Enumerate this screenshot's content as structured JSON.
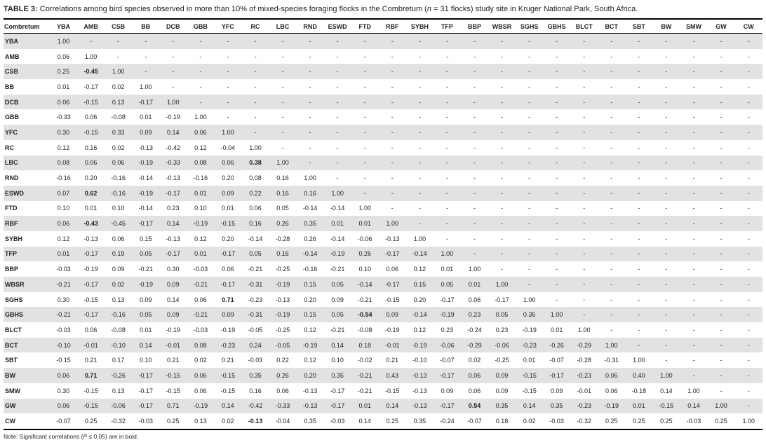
{
  "page": {
    "background": "#ffffff",
    "text_color": "#1f1f1f",
    "shaded_row_color": "#e2e2e2",
    "border_color": "#000000"
  },
  "title": {
    "prefix": "TABLE 3:",
    "before_n": " Correlations among bird species observed in more than 10% of mixed-species foraging flocks in the Combretum (",
    "n": "n",
    "after_n": " = 31 flocks) study site in Kruger National Park, South Africa."
  },
  "note": {
    "before_p": "Note: Significant correlations (",
    "p": "P",
    "after_p": " ≤ 0.05) are in bold."
  },
  "table": {
    "corner_label": "Combretum",
    "columns": [
      "YBA",
      "AMB",
      "CSB",
      "BB",
      "DCB",
      "GBB",
      "YFC",
      "RC",
      "LBC",
      "RND",
      "ESWD",
      "FTD",
      "RBF",
      "SYBH",
      "TFP",
      "BBP",
      "WBSR",
      "SGHS",
      "GBHS",
      "BLCT",
      "BCT",
      "SBT",
      "BW",
      "SMW",
      "GW",
      "CW"
    ],
    "rows": [
      {
        "species": "YBA",
        "bold": [],
        "values": [
          "1.00",
          "-",
          "-",
          "-",
          "-",
          "-",
          "-",
          "-",
          "-",
          "-",
          "-",
          "-",
          "-",
          "-",
          "-",
          "-",
          "-",
          "-",
          "-",
          "-",
          "-",
          "-",
          "-",
          "-",
          "-",
          "-"
        ]
      },
      {
        "species": "AMB",
        "bold": [],
        "values": [
          "0.06",
          "1.00",
          "-",
          "-",
          "-",
          "-",
          "-",
          "-",
          "-",
          "-",
          "-",
          "-",
          "-",
          "-",
          "-",
          "-",
          "-",
          "-",
          "-",
          "-",
          "-",
          "-",
          "-",
          "-",
          "-",
          "-"
        ]
      },
      {
        "species": "CSB",
        "bold": [
          1
        ],
        "values": [
          "0.25",
          "-0.45",
          "1.00",
          "-",
          "-",
          "-",
          "-",
          "-",
          "-",
          "-",
          "-",
          "-",
          "-",
          "-",
          "-",
          "-",
          "-",
          "-",
          "-",
          "-",
          "-",
          "-",
          "-",
          "-",
          "-",
          "-"
        ]
      },
      {
        "species": "BB",
        "bold": [],
        "values": [
          "0.01",
          "-0.17",
          "0.02",
          "1.00",
          "-",
          "-",
          "-",
          "-",
          "-",
          "-",
          "-",
          "-",
          "-",
          "-",
          "-",
          "-",
          "-",
          "-",
          "-",
          "-",
          "-",
          "-",
          "-",
          "-",
          "-",
          "-"
        ]
      },
      {
        "species": "DCB",
        "bold": [],
        "values": [
          "0.06",
          "-0.15",
          "0.13",
          "-0.17",
          "1.00",
          "-",
          "-",
          "-",
          "-",
          "-",
          "-",
          "-",
          "-",
          "-",
          "-",
          "-",
          "-",
          "-",
          "-",
          "-",
          "-",
          "-",
          "-",
          "-",
          "-",
          "-"
        ]
      },
      {
        "species": "GBB",
        "bold": [],
        "values": [
          "-0.33",
          "0.06",
          "-0.08",
          "0.01",
          "-0.19",
          "1.00",
          "-",
          "-",
          "-",
          "-",
          "-",
          "-",
          "-",
          "-",
          "-",
          "-",
          "-",
          "-",
          "-",
          "-",
          "-",
          "-",
          "-",
          "-",
          "-",
          "-"
        ]
      },
      {
        "species": "YFC",
        "bold": [],
        "values": [
          "0.30",
          "-0.15",
          "0.33",
          "0.09",
          "0.14",
          "0.06",
          "1.00",
          "-",
          "-",
          "-",
          "-",
          "-",
          "-",
          "-",
          "-",
          "-",
          "-",
          "-",
          "-",
          "-",
          "-",
          "-",
          "-",
          "-",
          "-",
          "-"
        ]
      },
      {
        "species": "RC",
        "bold": [],
        "values": [
          "0.12",
          "0.16",
          "0.02",
          "-0.13",
          "-0.42",
          "0.12",
          "-0.04",
          "1.00",
          "-",
          "-",
          "-",
          "-",
          "-",
          "-",
          "-",
          "-",
          "-",
          "-",
          "-",
          "-",
          "-",
          "-",
          "-",
          "-",
          "-",
          "-"
        ]
      },
      {
        "species": "LBC",
        "bold": [
          7
        ],
        "values": [
          "0.08",
          "0.06",
          "0.06",
          "-0.19",
          "-0.33",
          "0.08",
          "0.06",
          "0.38",
          "1.00",
          "-",
          "-",
          "-",
          "-",
          "-",
          "-",
          "-",
          "-",
          "-",
          "-",
          "-",
          "-",
          "-",
          "-",
          "-",
          "-",
          "-"
        ]
      },
      {
        "species": "RND",
        "bold": [],
        "values": [
          "-0.16",
          "0.20",
          "-0.16",
          "-0.14",
          "-0.13",
          "-0.16",
          "0.20",
          "0.08",
          "0.16",
          "1.00",
          "-",
          "-",
          "-",
          "-",
          "-",
          "-",
          "-",
          "-",
          "-",
          "-",
          "-",
          "-",
          "-",
          "-",
          "-",
          "-"
        ]
      },
      {
        "species": "ESWD",
        "bold": [
          1
        ],
        "values": [
          "0.07",
          "0.62",
          "-0.16",
          "-0.19",
          "-0.17",
          "0.01",
          "0.09",
          "0.22",
          "0.16",
          "0.16",
          "1.00",
          "-",
          "-",
          "-",
          "-",
          "-",
          "-",
          "-",
          "-",
          "-",
          "-",
          "-",
          "-",
          "-",
          "-",
          "-"
        ]
      },
      {
        "species": "FTD",
        "bold": [],
        "values": [
          "0.10",
          "0.01",
          "0.10",
          "-0.14",
          "0.23",
          "0.10",
          "0.01",
          "0.06",
          "0.05",
          "-0.14",
          "-0.14",
          "1.00",
          "-",
          "-",
          "-",
          "-",
          "-",
          "-",
          "-",
          "-",
          "-",
          "-",
          "-",
          "-",
          "-",
          "-"
        ]
      },
      {
        "species": "RBF",
        "bold": [
          1
        ],
        "values": [
          "0.06",
          "-0.43",
          "-0.45",
          "-0.17",
          "0.14",
          "-0.19",
          "-0.15",
          "0.16",
          "0.26",
          "0.35",
          "0.01",
          "0.01",
          "1.00",
          "-",
          "-",
          "-",
          "-",
          "-",
          "-",
          "-",
          "-",
          "-",
          "-",
          "-",
          "-",
          "-"
        ]
      },
      {
        "species": "SYBH",
        "bold": [],
        "values": [
          "0.12",
          "-0.13",
          "0.06",
          "0.15",
          "-0.13",
          "0.12",
          "0.20",
          "-0.14",
          "-0.28",
          "0.26",
          "-0.14",
          "-0.06",
          "-0.13",
          "1.00",
          "-",
          "-",
          "-",
          "-",
          "-",
          "-",
          "-",
          "-",
          "-",
          "-",
          "-",
          "-"
        ]
      },
      {
        "species": "TFP",
        "bold": [],
        "values": [
          "0.01",
          "-0.17",
          "0.19",
          "0.05",
          "-0.17",
          "0.01",
          "-0.17",
          "0.05",
          "0.16",
          "-0.14",
          "-0.19",
          "0.26",
          "-0.17",
          "-0.14",
          "1.00",
          "-",
          "-",
          "-",
          "-",
          "-",
          "-",
          "-",
          "-",
          "-",
          "-",
          "-"
        ]
      },
      {
        "species": "BBP",
        "bold": [],
        "values": [
          "-0.03",
          "-0.19",
          "0.09",
          "-0.21",
          "0.30",
          "-0.03",
          "0.06",
          "-0.21",
          "-0.25",
          "-0.16",
          "-0.21",
          "0.10",
          "0.06",
          "0.12",
          "0.01",
          "1.00",
          "-",
          "-",
          "-",
          "-",
          "-",
          "-",
          "-",
          "-",
          "-",
          "-"
        ]
      },
      {
        "species": "WBSR",
        "bold": [],
        "values": [
          "-0.21",
          "-0.17",
          "0.02",
          "-0.19",
          "0.09",
          "-0.21",
          "-0.17",
          "-0.31",
          "-0.19",
          "0.15",
          "0.05",
          "-0.14",
          "-0.17",
          "0.15",
          "0.05",
          "0.01",
          "1.00",
          "-",
          "-",
          "-",
          "-",
          "-",
          "-",
          "-",
          "-",
          "-"
        ]
      },
      {
        "species": "SGHS",
        "bold": [
          6
        ],
        "values": [
          "0.30",
          "-0.15",
          "0.13",
          "0.09",
          "0.14",
          "0.06",
          "0.71",
          "-0.23",
          "-0.13",
          "0.20",
          "0.09",
          "-0.21",
          "-0.15",
          "0.20",
          "-0.17",
          "0.06",
          "-0.17",
          "1.00",
          "-",
          "-",
          "-",
          "-",
          "-",
          "-",
          "-",
          "-"
        ]
      },
      {
        "species": "GBHS",
        "bold": [
          11
        ],
        "values": [
          "-0.21",
          "-0.17",
          "-0.16",
          "0.05",
          "0.09",
          "-0.21",
          "0.09",
          "-0.31",
          "-0.19",
          "0.15",
          "0.05",
          "-0.54",
          "0.09",
          "-0.14",
          "-0.19",
          "0.23",
          "0.05",
          "0.35",
          "1.00",
          "-",
          "-",
          "-",
          "-",
          "-",
          "-",
          "-"
        ]
      },
      {
        "species": "BLCT",
        "bold": [],
        "values": [
          "-0.03",
          "0.06",
          "-0.08",
          "0.01",
          "-0.19",
          "-0.03",
          "-0.19",
          "-0.05",
          "-0.25",
          "0.12",
          "-0.21",
          "-0.08",
          "-0.19",
          "0.12",
          "0.23",
          "-0.24",
          "0.23",
          "-0.19",
          "0.01",
          "1.00",
          "-",
          "-",
          "-",
          "-",
          "-",
          "-"
        ]
      },
      {
        "species": "BCT",
        "bold": [],
        "values": [
          "-0.10",
          "-0.01",
          "-0.10",
          "0.14",
          "-0.01",
          "0.08",
          "-0.23",
          "0.24",
          "-0.05",
          "-0.19",
          "0.14",
          "0.18",
          "-0.01",
          "-0.19",
          "-0.06",
          "-0.29",
          "-0.06",
          "-0.23",
          "-0.26",
          "-0.29",
          "1.00",
          "-",
          "-",
          "-",
          "-",
          "-"
        ]
      },
      {
        "species": "SBT",
        "bold": [],
        "values": [
          "-0.15",
          "0.21",
          "0.17",
          "0.10",
          "0.21",
          "0.02",
          "0.21",
          "-0.03",
          "0.22",
          "0.12",
          "0.10",
          "-0.02",
          "0.21",
          "-0.10",
          "-0.07",
          "0.02",
          "-0.25",
          "0.01",
          "-0.07",
          "-0.28",
          "-0.31",
          "1.00",
          "-",
          "-",
          "-",
          "-"
        ]
      },
      {
        "species": "BW",
        "bold": [
          1
        ],
        "values": [
          "0.06",
          "0.71",
          "-0.26",
          "-0.17",
          "-0.15",
          "0.06",
          "-0.15",
          "0.35",
          "0.26",
          "0.20",
          "0.35",
          "-0.21",
          "0.43",
          "-0.13",
          "-0.17",
          "0.06",
          "0.09",
          "-0.15",
          "-0.17",
          "-0.23",
          "0.06",
          "0.40",
          "1.00",
          "-",
          "-",
          "-"
        ]
      },
      {
        "species": "SMW",
        "bold": [],
        "values": [
          "0.30",
          "-0.15",
          "0.13",
          "-0.17",
          "-0.15",
          "0.06",
          "-0.15",
          "0.16",
          "0.06",
          "-0.13",
          "-0.17",
          "-0.21",
          "-0.15",
          "-0.13",
          "0.09",
          "0.06",
          "0.09",
          "-0.15",
          "0.09",
          "-0.01",
          "0.06",
          "-0.18",
          "0.14",
          "1.00",
          "-",
          "-"
        ]
      },
      {
        "species": "GW",
        "bold": [
          15
        ],
        "values": [
          "0.06",
          "-0.15",
          "-0.06",
          "-0.17",
          "0.71",
          "-0.19",
          "0.14",
          "-0.42",
          "-0.33",
          "-0.13",
          "-0.17",
          "0.01",
          "0.14",
          "-0.13",
          "-0.17",
          "0.54",
          "0.35",
          "0.14",
          "0.35",
          "-0.23",
          "-0.19",
          "0.01",
          "-0.15",
          "0.14",
          "1.00",
          "-"
        ]
      },
      {
        "species": "CW",
        "bold": [
          7
        ],
        "values": [
          "-0.07",
          "0.25",
          "-0.32",
          "-0.03",
          "0.25",
          "0.13",
          "0.02",
          "-0.13",
          "-0.04",
          "0.35",
          "-0.03",
          "0.14",
          "0.25",
          "0.35",
          "-0.24",
          "-0.07",
          "0.18",
          "0.02",
          "-0.03",
          "-0.32",
          "0.25",
          "0.25",
          "0.25",
          "-0.03",
          "0.25",
          "1.00"
        ]
      }
    ]
  }
}
